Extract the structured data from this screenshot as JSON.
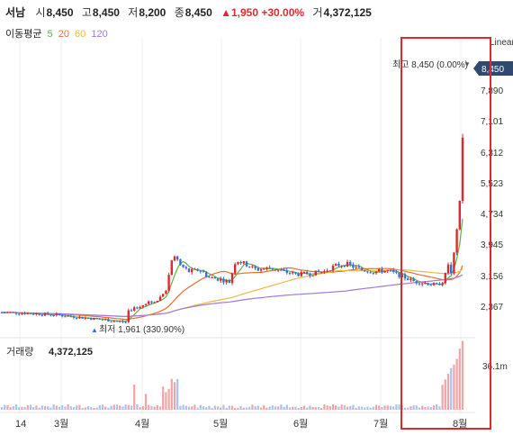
{
  "header": {
    "name": "서남",
    "open_label": "시",
    "open": "8,450",
    "high_label": "고",
    "high": "8,450",
    "low_label": "저",
    "low": "8,200",
    "close_label": "종",
    "close": "8,450",
    "change": "▲1,950 +30.00%",
    "volume_label": "거",
    "volume": "4,372,125"
  },
  "ma_legend": {
    "label": "이동평균",
    "items": [
      {
        "period": "5",
        "color": "#5fb14a"
      },
      {
        "period": "20",
        "color": "#e0702d"
      },
      {
        "period": "60",
        "color": "#e8b84a"
      },
      {
        "period": "120",
        "color": "#a07ad8"
      }
    ]
  },
  "chart_data": {
    "type": "candlestick",
    "y_axis": {
      "scale": "Linear",
      "ticks": [
        "8,450",
        "7,890",
        "7,101",
        "6,312",
        "5,523",
        "4,734",
        "3,945",
        "3,156",
        "2,367"
      ],
      "current_price": "8,450"
    },
    "x_axis": {
      "ticks": [
        "14",
        "3월",
        "4월",
        "5월",
        "6월",
        "7월",
        "8월"
      ]
    },
    "annotations": {
      "high": "최고 8,450 (0.00%)",
      "low": "최저 1,961 (330.90%)"
    },
    "volume": {
      "label": "거래량",
      "value": "4,372,125",
      "axis_tick": "36.1m"
    }
  }
}
